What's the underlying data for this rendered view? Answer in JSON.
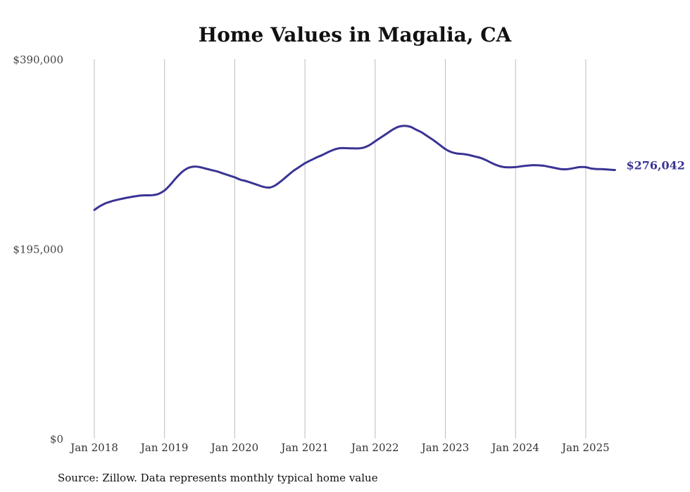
{
  "chart_data": {
    "type": "line",
    "title": "Home Values in Magalia, CA",
    "source": "Source: Zillow. Data represents monthly typical home value",
    "xlabel": "",
    "ylabel": "",
    "ylim": [
      0,
      390000
    ],
    "xlim": [
      "2018-01",
      "2025-06"
    ],
    "yticks": [
      {
        "value": 0,
        "label": "$0"
      },
      {
        "value": 195000,
        "label": "$195,000"
      },
      {
        "value": 390000,
        "label": "$390,000"
      }
    ],
    "xticks": [
      {
        "value": "2018-01",
        "label": "Jan 2018"
      },
      {
        "value": "2019-01",
        "label": "Jan 2019"
      },
      {
        "value": "2020-01",
        "label": "Jan 2020"
      },
      {
        "value": "2021-01",
        "label": "Jan 2021"
      },
      {
        "value": "2022-01",
        "label": "Jan 2022"
      },
      {
        "value": "2023-01",
        "label": "Jan 2023"
      },
      {
        "value": "2024-01",
        "label": "Jan 2024"
      },
      {
        "value": "2025-01",
        "label": "Jan 2025"
      }
    ],
    "grid": "vertical",
    "line_color": "#3a3494",
    "end_label": "$276,042",
    "series": [
      {
        "x": [
          "2018-01",
          "2018-02",
          "2018-03",
          "2018-04",
          "2018-05",
          "2018-06",
          "2018-07",
          "2018-08",
          "2018-09",
          "2018-10",
          "2018-11",
          "2018-12",
          "2019-01",
          "2019-02",
          "2019-03",
          "2019-04",
          "2019-05",
          "2019-06",
          "2019-07",
          "2019-08",
          "2019-09",
          "2019-10",
          "2019-11",
          "2019-12",
          "2020-01",
          "2020-02",
          "2020-03",
          "2020-04",
          "2020-05",
          "2020-06",
          "2020-07",
          "2020-08",
          "2020-09",
          "2020-10",
          "2020-11",
          "2020-12",
          "2021-01",
          "2021-02",
          "2021-03",
          "2021-04",
          "2021-05",
          "2021-06",
          "2021-07",
          "2021-08",
          "2021-09",
          "2021-10",
          "2021-11",
          "2021-12",
          "2022-01",
          "2022-02",
          "2022-03",
          "2022-04",
          "2022-05",
          "2022-06",
          "2022-07",
          "2022-08",
          "2022-09",
          "2022-10",
          "2022-11",
          "2022-12",
          "2023-01",
          "2023-02",
          "2023-03",
          "2023-04",
          "2023-05",
          "2023-06",
          "2023-07",
          "2023-08",
          "2023-09",
          "2023-10",
          "2023-11",
          "2023-12",
          "2024-01",
          "2024-02",
          "2024-03",
          "2024-04",
          "2024-05",
          "2024-06",
          "2024-07",
          "2024-08",
          "2024-09",
          "2024-10",
          "2024-11",
          "2024-12",
          "2025-01",
          "2025-02",
          "2025-03",
          "2025-04",
          "2025-05",
          "2025-06"
        ],
        "values": [
          235000,
          239000,
          242000,
          244000,
          245500,
          246800,
          248000,
          249000,
          249800,
          250000,
          250200,
          251500,
          255000,
          261000,
          268000,
          274000,
          278000,
          279500,
          279000,
          277500,
          276000,
          274500,
          272500,
          270500,
          268500,
          266000,
          264500,
          262500,
          260500,
          258500,
          258000,
          260500,
          265000,
          270000,
          275000,
          279000,
          283000,
          286000,
          289000,
          291500,
          294500,
          297000,
          298500,
          298500,
          298300,
          298200,
          299000,
          301500,
          305500,
          309500,
          313500,
          317500,
          320500,
          321500,
          320500,
          317500,
          314500,
          310500,
          306500,
          302000,
          297500,
          294500,
          293000,
          292500,
          291500,
          290000,
          288500,
          286000,
          283000,
          280500,
          279000,
          278800,
          279000,
          279800,
          280500,
          281000,
          280800,
          280200,
          279000,
          277800,
          276800,
          277000,
          278000,
          279000,
          278900,
          277500,
          277000,
          276800,
          276400,
          276042
        ]
      }
    ]
  }
}
